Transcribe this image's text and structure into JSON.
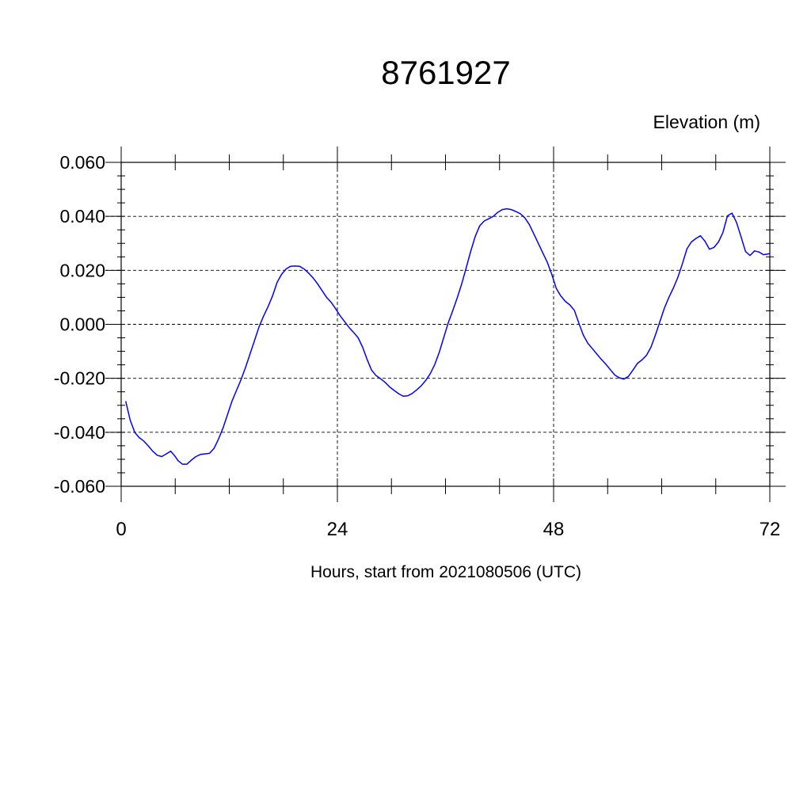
{
  "chart_data": {
    "type": "line",
    "title": "8761927",
    "units_label": "Elevation (m)",
    "xlabel": "Hours, start from 2021080506 (UTC)",
    "ylabel": "",
    "xlim": [
      0,
      72
    ],
    "ylim": [
      -0.06,
      0.06
    ],
    "x_major_ticks": [
      0,
      24,
      48,
      72
    ],
    "x_tick_labels": [
      "0",
      "24",
      "48",
      "72"
    ],
    "x_minor_step": 6,
    "y_major_ticks": [
      -0.06,
      -0.04,
      -0.02,
      0.0,
      0.02,
      0.04,
      0.06
    ],
    "y_tick_labels": [
      "-0.060",
      "-0.040",
      "-0.020",
      "0.000",
      "0.020",
      "0.040",
      "0.060"
    ],
    "y_minor_step": 0.005,
    "grid": true,
    "series": [
      {
        "color": "#0000ff",
        "points": [
          [
            0.5,
            -0.0285
          ],
          [
            1.0,
            -0.0355
          ],
          [
            1.5,
            -0.04
          ],
          [
            2.0,
            -0.042
          ],
          [
            2.5,
            -0.0432
          ],
          [
            3.0,
            -0.045
          ],
          [
            3.5,
            -0.047
          ],
          [
            4.0,
            -0.0485
          ],
          [
            4.5,
            -0.049
          ],
          [
            5.0,
            -0.048
          ],
          [
            5.5,
            -0.047
          ],
          [
            6.0,
            -0.049
          ],
          [
            6.3,
            -0.0505
          ],
          [
            6.8,
            -0.0518
          ],
          [
            7.3,
            -0.0518
          ],
          [
            7.8,
            -0.0503
          ],
          [
            8.3,
            -0.049
          ],
          [
            8.8,
            -0.0482
          ],
          [
            9.3,
            -0.048
          ],
          [
            9.8,
            -0.0478
          ],
          [
            10.3,
            -0.046
          ],
          [
            10.8,
            -0.0425
          ],
          [
            11.3,
            -0.0385
          ],
          [
            11.8,
            -0.0335
          ],
          [
            12.3,
            -0.0285
          ],
          [
            12.8,
            -0.0245
          ],
          [
            13.3,
            -0.0205
          ],
          [
            13.8,
            -0.016
          ],
          [
            14.3,
            -0.011
          ],
          [
            14.8,
            -0.006
          ],
          [
            15.3,
            -0.001
          ],
          [
            15.8,
            0.003
          ],
          [
            16.3,
            0.0065
          ],
          [
            16.8,
            0.0105
          ],
          [
            17.3,
            0.0155
          ],
          [
            17.8,
            0.0185
          ],
          [
            18.3,
            0.0205
          ],
          [
            18.8,
            0.0215
          ],
          [
            19.3,
            0.0216
          ],
          [
            19.8,
            0.0215
          ],
          [
            20.3,
            0.0205
          ],
          [
            20.8,
            0.019
          ],
          [
            21.3,
            0.0172
          ],
          [
            21.8,
            0.015
          ],
          [
            22.3,
            0.0125
          ],
          [
            22.8,
            0.01
          ],
          [
            23.3,
            0.0082
          ],
          [
            23.8,
            0.0058
          ],
          [
            24.3,
            0.0032
          ],
          [
            24.8,
            0.001
          ],
          [
            25.3,
            -0.0012
          ],
          [
            25.8,
            -0.003
          ],
          [
            26.3,
            -0.005
          ],
          [
            26.8,
            -0.0085
          ],
          [
            27.3,
            -0.013
          ],
          [
            27.8,
            -0.017
          ],
          [
            28.3,
            -0.019
          ],
          [
            28.8,
            -0.0202
          ],
          [
            29.3,
            -0.0215
          ],
          [
            29.8,
            -0.0232
          ],
          [
            30.3,
            -0.0245
          ],
          [
            30.8,
            -0.0257
          ],
          [
            31.3,
            -0.0266
          ],
          [
            31.8,
            -0.0265
          ],
          [
            32.3,
            -0.0256
          ],
          [
            32.8,
            -0.0243
          ],
          [
            33.3,
            -0.0228
          ],
          [
            33.8,
            -0.0208
          ],
          [
            34.3,
            -0.0183
          ],
          [
            34.8,
            -0.015
          ],
          [
            35.3,
            -0.0105
          ],
          [
            35.8,
            -0.005
          ],
          [
            36.3,
            0.0005
          ],
          [
            36.8,
            0.005
          ],
          [
            37.3,
            0.0098
          ],
          [
            37.8,
            0.015
          ],
          [
            38.3,
            0.021
          ],
          [
            38.8,
            0.027
          ],
          [
            39.3,
            0.0325
          ],
          [
            39.8,
            0.0365
          ],
          [
            40.3,
            0.0383
          ],
          [
            40.8,
            0.0391
          ],
          [
            41.3,
            0.04
          ],
          [
            41.8,
            0.0415
          ],
          [
            42.3,
            0.0425
          ],
          [
            42.8,
            0.0428
          ],
          [
            43.3,
            0.0425
          ],
          [
            43.8,
            0.0418
          ],
          [
            44.3,
            0.041
          ],
          [
            44.8,
            0.0395
          ],
          [
            45.3,
            0.037
          ],
          [
            45.8,
            0.0335
          ],
          [
            46.3,
            0.03
          ],
          [
            46.8,
            0.0265
          ],
          [
            47.3,
            0.023
          ],
          [
            47.8,
            0.0185
          ],
          [
            48.3,
            0.0133
          ],
          [
            48.8,
            0.0105
          ],
          [
            49.3,
            0.0085
          ],
          [
            49.8,
            0.0072
          ],
          [
            50.3,
            0.0052
          ],
          [
            50.8,
            0.0005
          ],
          [
            51.3,
            -0.004
          ],
          [
            51.8,
            -0.007
          ],
          [
            52.3,
            -0.009
          ],
          [
            52.8,
            -0.011
          ],
          [
            53.3,
            -0.013
          ],
          [
            53.8,
            -0.0148
          ],
          [
            54.3,
            -0.0168
          ],
          [
            54.8,
            -0.0188
          ],
          [
            55.3,
            -0.0198
          ],
          [
            55.8,
            -0.0203
          ],
          [
            56.3,
            -0.0193
          ],
          [
            56.8,
            -0.017
          ],
          [
            57.3,
            -0.0145
          ],
          [
            57.8,
            -0.0132
          ],
          [
            58.3,
            -0.0115
          ],
          [
            58.8,
            -0.0085
          ],
          [
            59.3,
            -0.004
          ],
          [
            59.8,
            0.001
          ],
          [
            60.3,
            0.006
          ],
          [
            60.8,
            0.01
          ],
          [
            61.3,
            0.0135
          ],
          [
            61.8,
            0.0175
          ],
          [
            62.3,
            0.0225
          ],
          [
            62.8,
            0.028
          ],
          [
            63.3,
            0.0305
          ],
          [
            63.8,
            0.0318
          ],
          [
            64.3,
            0.0328
          ],
          [
            64.8,
            0.0308
          ],
          [
            65.3,
            0.0278
          ],
          [
            65.8,
            0.0285
          ],
          [
            66.3,
            0.0305
          ],
          [
            66.8,
            0.034
          ],
          [
            67.3,
            0.0402
          ],
          [
            67.8,
            0.0412
          ],
          [
            68.3,
            0.0378
          ],
          [
            68.8,
            0.0325
          ],
          [
            69.3,
            0.027
          ],
          [
            69.8,
            0.0255
          ],
          [
            70.3,
            0.0272
          ],
          [
            70.8,
            0.0268
          ],
          [
            71.3,
            0.0258
          ],
          [
            72.0,
            0.0262
          ]
        ]
      }
    ]
  }
}
